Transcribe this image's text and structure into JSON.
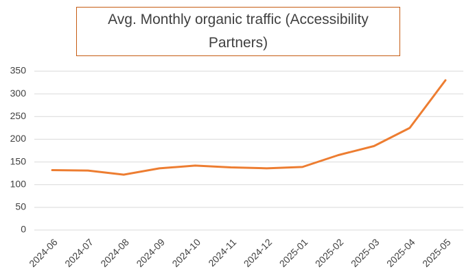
{
  "chart_data": {
    "type": "line",
    "title": "Avg. Monthly organic traffic (Accessibility Partners)",
    "categories": [
      "2024-06",
      "2024-07",
      "2024-08",
      "2024-09",
      "2024-10",
      "2024-11",
      "2024-12",
      "2025-01",
      "2025-02",
      "2025-03",
      "2025-04",
      "2025-05"
    ],
    "values": [
      132,
      131,
      122,
      136,
      142,
      138,
      136,
      139,
      165,
      185,
      225,
      330
    ],
    "color": "#ed7d31",
    "ylim": [
      0,
      350
    ],
    "yticks": [
      0,
      50,
      100,
      150,
      200,
      250,
      300,
      350
    ],
    "grid": true
  }
}
